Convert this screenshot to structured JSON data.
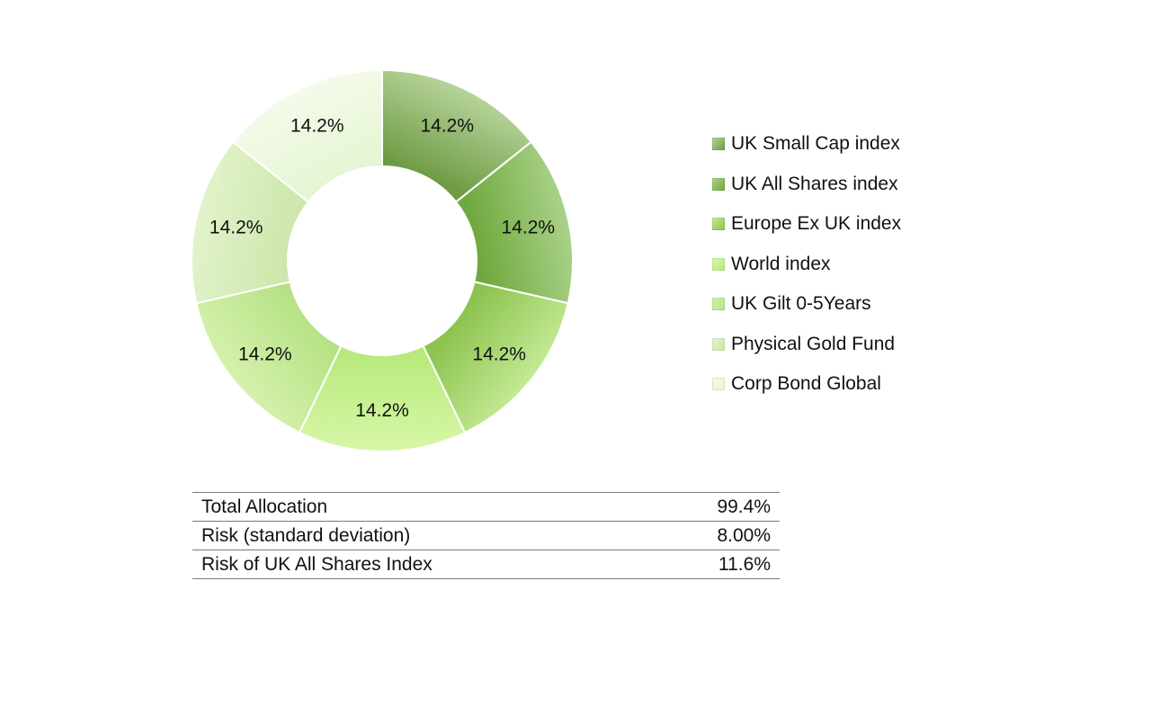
{
  "chart_data": {
    "type": "pie",
    "donut": true,
    "legend_position": "right",
    "categories": [
      "UK Small Cap index",
      "UK All Shares index",
      "Europe Ex UK index",
      "World index",
      "UK Gilt 0-5Years",
      "Physical Gold Fund",
      "Corp Bond Global"
    ],
    "values": [
      14.2,
      14.2,
      14.2,
      14.2,
      14.2,
      14.2,
      14.2
    ],
    "labels": [
      "14.2%",
      "14.2%",
      "14.2%",
      "14.2%",
      "14.2%",
      "14.2%",
      "14.2%"
    ],
    "colors": [
      [
        "#b7d49a",
        "#6f9b45"
      ],
      [
        "#aad28a",
        "#70a83d"
      ],
      [
        "#c4ea95",
        "#8cc24e"
      ],
      [
        "#d8f7a9",
        "#b7ea7c"
      ],
      [
        "#d6f1ad",
        "#b6e285"
      ],
      [
        "#e2f3cb",
        "#cde7ac"
      ],
      [
        "#f4fbea",
        "#e6f5d4"
      ]
    ]
  },
  "table": {
    "rows": [
      {
        "label": "Total Allocation",
        "value": "99.4%"
      },
      {
        "label": "Risk (standard deviation)",
        "value": "8.00%"
      },
      {
        "label": "Risk of UK All Shares Index",
        "value": "11.6%"
      }
    ]
  }
}
